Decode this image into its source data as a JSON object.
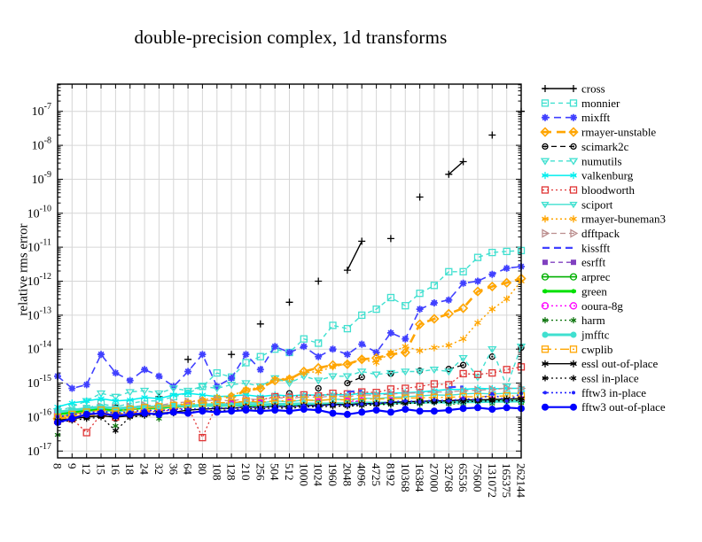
{
  "chart_data": {
    "type": "line",
    "title": "double-precision complex, 1d transforms",
    "ylabel": "relative rms error",
    "xlabel": "",
    "x_scale": "log-size-categorical",
    "y_scale": "log",
    "grid": true,
    "legend_position": "right-outside",
    "x_tick_rotation": 90,
    "categories": [
      "8",
      "9",
      "12",
      "15",
      "16",
      "18",
      "24",
      "32",
      "36",
      "64",
      "80",
      "108",
      "128",
      "210",
      "256",
      "504",
      "512",
      "1000",
      "1024",
      "1960",
      "2048",
      "4096",
      "4725",
      "8192",
      "10368",
      "16384",
      "27000",
      "32768",
      "65536",
      "75600",
      "131072",
      "165375",
      "262144"
    ],
    "y_tick_exponents": [
      -7,
      -8,
      -9,
      -10,
      -11,
      -12,
      -13,
      -14,
      -15,
      -16,
      -17
    ],
    "ylim_exponents": [
      -6.2,
      -17.2
    ],
    "series": [
      {
        "name": "cross",
        "color": "#000000",
        "dash": null,
        "width": 1.4,
        "marker": "plus",
        "marker_size": 4,
        "values": [
          1.5e-16,
          null,
          null,
          null,
          2.2e-16,
          null,
          null,
          4e-16,
          null,
          5e-15,
          null,
          null,
          7e-15,
          null,
          5.5e-14,
          null,
          2.4e-13,
          null,
          1e-12,
          null,
          2.1e-12,
          1.5e-11,
          null,
          1.8e-11,
          null,
          3e-10,
          null,
          1.4e-09,
          3.3e-09,
          null,
          2e-08,
          null,
          1e-07
        ]
      },
      {
        "name": "monnier",
        "color": "#40e0d0",
        "dash": "5,4",
        "width": 1.4,
        "marker": "square",
        "marker_size": 3.5,
        "values": [
          1.3e-16,
          1.5e-16,
          1.8e-16,
          2.5e-16,
          2e-16,
          2.5e-16,
          3e-16,
          3e-16,
          4e-16,
          5e-16,
          8e-16,
          2e-15,
          1.5e-15,
          4e-15,
          6e-15,
          1e-14,
          8e-15,
          2e-14,
          1.5e-14,
          5e-14,
          4e-14,
          1e-13,
          1.5e-13,
          3.3e-13,
          1.9e-13,
          4.4e-13,
          7.5e-13,
          1.9e-12,
          1.9e-12,
          5e-12,
          7e-12,
          7.5e-12,
          8e-12
        ]
      },
      {
        "name": "mixfft",
        "color": "#4040ff",
        "dash": "8,5",
        "width": 1.6,
        "marker": "star",
        "marker_size": 4,
        "values": [
          1.6e-15,
          7e-16,
          9e-16,
          7e-15,
          2e-15,
          1.2e-15,
          2.5e-15,
          1.6e-15,
          8e-16,
          2.2e-15,
          7e-15,
          8e-16,
          1.4e-15,
          7e-15,
          2.5e-15,
          1.2e-14,
          8e-15,
          1.2e-14,
          6e-15,
          1e-14,
          7e-15,
          1.4e-14,
          8e-15,
          3e-14,
          2e-14,
          1.5e-13,
          2.3e-13,
          2.8e-13,
          8.7e-13,
          1e-12,
          1.6e-12,
          2.4e-12,
          2.7e-12
        ]
      },
      {
        "name": "rmayer-unstable",
        "color": "#ffa500",
        "dash": "10,6",
        "width": 2.6,
        "marker": "diamond",
        "marker_size": 4.5,
        "values": [
          9e-17,
          1e-16,
          1.1e-16,
          1.3e-16,
          1.2e-16,
          1.3e-16,
          1.5e-16,
          1.6e-16,
          1.8e-16,
          2.5e-16,
          3e-16,
          3.5e-16,
          4e-16,
          6e-16,
          7e-16,
          1.2e-15,
          1.3e-15,
          2.2e-15,
          2.8e-15,
          3.4e-15,
          3.6e-15,
          5e-15,
          5.5e-15,
          7e-15,
          8e-15,
          5.4e-14,
          7.8e-14,
          1.1e-13,
          1.6e-13,
          5e-13,
          7e-13,
          9e-13,
          1.2e-12
        ]
      },
      {
        "name": "scimark2c",
        "color": "#000000",
        "dash": "6,4",
        "width": 1.3,
        "marker": "circledot",
        "marker_size": 3,
        "values": [
          7e-17,
          null,
          null,
          null,
          9e-17,
          null,
          null,
          1.2e-16,
          null,
          1.8e-16,
          null,
          null,
          2.6e-16,
          null,
          3.5e-16,
          null,
          5e-16,
          null,
          7e-16,
          null,
          1e-15,
          1.5e-15,
          null,
          1.9e-15,
          null,
          2.3e-15,
          null,
          2.6e-15,
          3.4e-15,
          null,
          6e-15,
          null,
          1.1e-14
        ]
      },
      {
        "name": "numutils",
        "color": "#40e0d0",
        "dash": "5,4",
        "width": 1.4,
        "marker": "tridown",
        "marker_size": 4,
        "values": [
          1.5e-16,
          2e-16,
          3e-16,
          5e-16,
          4e-16,
          5.5e-16,
          6e-16,
          5e-16,
          7e-16,
          6e-16,
          8e-16,
          7e-16,
          9e-16,
          1e-15,
          8e-16,
          1.4e-15,
          1e-15,
          1.6e-15,
          1.2e-15,
          1.6e-15,
          1.6e-15,
          2.2e-15,
          1.8e-15,
          2e-15,
          2.2e-15,
          2.2e-15,
          2.5e-15,
          2.2e-15,
          5.5e-15,
          1.5e-15,
          1e-14,
          8e-16,
          1.2e-14
        ]
      },
      {
        "name": "valkenburg",
        "color": "#00eeee",
        "dash": null,
        "width": 1.5,
        "marker": "asterisk",
        "marker_size": 4,
        "values": [
          2e-16,
          2.6e-16,
          3e-16,
          3.5e-16,
          3e-16,
          3.2e-16,
          3.8e-16,
          3.5e-16,
          4.5e-16,
          5e-16,
          4.5e-16,
          4e-16,
          4.2e-16,
          4.5e-16,
          4e-16,
          4.5e-16,
          4.2e-16,
          4.5e-16,
          4.4e-16,
          4.6e-16,
          4.5e-16,
          5e-16,
          4.8e-16,
          5e-16,
          5.2e-16,
          5.5e-16,
          6e-16,
          6.5e-16,
          6.5e-16,
          7e-16,
          6.8e-16,
          7e-16,
          7e-16
        ]
      },
      {
        "name": "bloodworth",
        "color": "#e03535",
        "dash": "2,3",
        "width": 1.3,
        "marker": "square",
        "marker_size": 3.5,
        "values": [
          8e-17,
          9e-17,
          3.5e-17,
          1.2e-16,
          1e-16,
          1.3e-16,
          1.4e-16,
          1.5e-16,
          1.6e-16,
          2e-16,
          2.5e-17,
          2.5e-16,
          2.6e-16,
          3e-16,
          3.2e-16,
          4e-16,
          3.8e-16,
          4.5e-16,
          4.2e-16,
          5e-16,
          4.8e-16,
          5.5e-16,
          5.3e-16,
          6.7e-16,
          7e-16,
          8e-16,
          9.5e-16,
          9e-16,
          1.9e-15,
          1.8e-15,
          2e-15,
          2.5e-15,
          3e-15
        ]
      },
      {
        "name": "sciport",
        "color": "#40e0d0",
        "dash": null,
        "width": 1.4,
        "marker": "tridown",
        "marker_size": 3.5,
        "values": [
          1e-16,
          1.2e-16,
          1.4e-16,
          1.6e-16,
          1.4e-16,
          1.6e-16,
          1.8e-16,
          1.7e-16,
          2e-16,
          2.2e-16,
          2.4e-16,
          2.5e-16,
          2.4e-16,
          2.8e-16,
          2.6e-16,
          3e-16,
          2.8e-16,
          3.2e-16,
          3e-16,
          3.4e-16,
          3.2e-16,
          3.6e-16,
          3.5e-16,
          3.8e-16,
          4e-16,
          4.2e-16,
          4.5e-16,
          4.4e-16,
          4.8e-16,
          5e-16,
          4.8e-16,
          5e-16,
          5e-16
        ]
      },
      {
        "name": "rmayer-buneman3",
        "color": "#ffa500",
        "dash": "2,3",
        "width": 1.5,
        "marker": "asterisk",
        "marker_size": 4,
        "values": [
          9e-17,
          1.1e-16,
          1.2e-16,
          1.4e-16,
          1.3e-16,
          1.5e-16,
          1.7e-16,
          1.8e-16,
          2e-16,
          2.8e-16,
          3.2e-16,
          3.8e-16,
          4.2e-16,
          6.5e-16,
          7.5e-16,
          1.3e-15,
          1.4e-15,
          2e-15,
          2.2e-15,
          3e-15,
          3.7e-15,
          5e-15,
          4e-15,
          8e-15,
          1.2e-14,
          9e-15,
          1.1e-14,
          1.3e-14,
          2e-14,
          6e-14,
          1.5e-13,
          3e-13,
          1e-12
        ]
      },
      {
        "name": "dfftpack",
        "color": "#bc8f8f",
        "dash": "6,4",
        "width": 1.3,
        "marker": "triright",
        "marker_size": 4,
        "values": [
          1.2e-16,
          1.4e-16,
          1.6e-16,
          2e-16,
          1.8e-16,
          2e-16,
          2.2e-16,
          2.2e-16,
          2.6e-16,
          2.8e-16,
          3e-16,
          3.2e-16,
          3e-16,
          3.5e-16,
          3.2e-16,
          3.8e-16,
          3.5e-16,
          4e-16,
          3.8e-16,
          4.2e-16,
          4e-16,
          4.5e-16,
          4.4e-16,
          4.8e-16,
          5e-16,
          5.2e-16,
          5.5e-16,
          5.5e-16,
          6e-16,
          6.2e-16,
          6.5e-16,
          7e-16,
          7e-16
        ]
      },
      {
        "name": "kissfft",
        "color": "#4040ff",
        "dash": "8,5",
        "width": 2.2,
        "marker": "none",
        "marker_size": 0,
        "values": [
          1.5e-16,
          null,
          null,
          null,
          1.8e-16,
          null,
          null,
          2.2e-16,
          null,
          2.8e-16,
          null,
          null,
          3.4e-16,
          null,
          4e-16,
          null,
          4.5e-16,
          null,
          5e-16,
          null,
          5.5e-16,
          6e-16,
          null,
          6.5e-16,
          null,
          7e-16,
          null,
          7.5e-16,
          8e-16,
          null,
          8.5e-16,
          null,
          9e-16
        ]
      },
      {
        "name": "esrfft",
        "color": "#8040c0",
        "dash": "5,4",
        "width": 1.4,
        "marker": "fsquare",
        "marker_size": 3,
        "values": [
          1.4e-16,
          null,
          null,
          null,
          1.6e-16,
          null,
          null,
          1.9e-16,
          null,
          2.2e-16,
          null,
          null,
          2.5e-16,
          null,
          2.7e-16,
          null,
          2.7e-16,
          null,
          2.8e-16,
          null,
          2.8e-16,
          2.9e-16,
          null,
          3e-16,
          null,
          3e-16,
          null,
          3e-16,
          3e-16,
          null,
          3e-16,
          null,
          3e-16
        ]
      },
      {
        "name": "arprec",
        "color": "#00b000",
        "dash": null,
        "width": 1.6,
        "marker": "circle",
        "marker_size": 3.5,
        "values": [
          1e-16,
          null,
          null,
          null,
          1.2e-16,
          null,
          null,
          1.4e-16,
          null,
          1.7e-16,
          null,
          null,
          2e-16,
          null,
          2.2e-16,
          null,
          2.3e-16,
          null,
          2.4e-16,
          null,
          2.5e-16,
          2.6e-16,
          null,
          2.7e-16,
          null,
          2.8e-16,
          null,
          2.8e-16,
          2.9e-16,
          null,
          3e-16,
          null,
          3e-16
        ]
      },
      {
        "name": "green",
        "color": "#00e000",
        "dash": null,
        "width": 3,
        "marker": "dot",
        "marker_size": 2.5,
        "values": [
          1.2e-16,
          1.4e-16,
          1.6e-16,
          1.8e-16,
          1.6e-16,
          1.8e-16,
          1.9e-16,
          1.9e-16,
          2.1e-16,
          2.1e-16,
          2.2e-16,
          2.2e-16,
          2.2e-16,
          2.3e-16,
          2.2e-16,
          2.4e-16,
          2.3e-16,
          2.4e-16,
          2.4e-16,
          2.5e-16,
          2.4e-16,
          2.6e-16,
          2.5e-16,
          2.6e-16,
          2.7e-16,
          2.7e-16,
          2.8e-16,
          2.8e-16,
          2.9e-16,
          3e-16,
          3e-16,
          3e-16,
          3e-16
        ]
      },
      {
        "name": "ooura-8g",
        "color": "#ff00ff",
        "dash": "2,3",
        "width": 1.4,
        "marker": "circle",
        "marker_size": 3.5,
        "values": [
          1.3e-16,
          null,
          null,
          null,
          1.5e-16,
          null,
          null,
          1.8e-16,
          null,
          2.1e-16,
          null,
          null,
          2.4e-16,
          null,
          2.6e-16,
          null,
          2.7e-16,
          null,
          2.8e-16,
          null,
          2.9e-16,
          3e-16,
          null,
          3e-16,
          null,
          3.1e-16,
          null,
          3.1e-16,
          3.2e-16,
          null,
          3.2e-16,
          null,
          3.3e-16
        ]
      },
      {
        "name": "harm",
        "color": "#117711",
        "dash": "2,3",
        "width": 1.4,
        "marker": "asterisk",
        "marker_size": 3.5,
        "values": [
          3e-17,
          null,
          null,
          null,
          5.5e-17,
          null,
          null,
          9e-17,
          null,
          1.3e-16,
          null,
          null,
          1.7e-16,
          null,
          1.9e-16,
          null,
          2e-16,
          null,
          2.1e-16,
          null,
          2.2e-16,
          2.2e-16,
          null,
          2.3e-16,
          null,
          2.4e-16,
          null,
          2.4e-16,
          2.5e-16,
          null,
          2.5e-16,
          null,
          2.6e-16
        ]
      },
      {
        "name": "jmfftc",
        "color": "#40e0d0",
        "dash": null,
        "width": 3,
        "marker": "dot",
        "marker_size": 3.5,
        "values": [
          1.4e-16,
          1.6e-16,
          1.8e-16,
          2e-16,
          1.8e-16,
          1.9e-16,
          2e-16,
          2e-16,
          2.2e-16,
          2.1e-16,
          2.2e-16,
          2.3e-16,
          2.2e-16,
          2.4e-16,
          2.3e-16,
          2.4e-16,
          2.4e-16,
          2.5e-16,
          2.4e-16,
          2.5e-16,
          2.5e-16,
          2.6e-16,
          2.6e-16,
          2.6e-16,
          2.7e-16,
          2.7e-16,
          2.8e-16,
          2.7e-16,
          2.8e-16,
          2.8e-16,
          2.9e-16,
          2.9e-16,
          3e-16
        ]
      },
      {
        "name": "cwplib",
        "color": "#ffa500",
        "dash": "10,4,2,4",
        "width": 1.4,
        "marker": "square",
        "marker_size": 3.5,
        "values": [
          1e-16,
          1.2e-16,
          1.4e-16,
          1.6e-16,
          1.5e-16,
          1.7e-16,
          1.9e-16,
          2e-16,
          2.2e-16,
          2.4e-16,
          2.6e-16,
          2.7e-16,
          2.6e-16,
          2.9e-16,
          2.8e-16,
          3e-16,
          3e-16,
          3.2e-16,
          3.1e-16,
          3.3e-16,
          3.2e-16,
          3.4e-16,
          3.4e-16,
          3.5e-16,
          3.6e-16,
          3.7e-16,
          3.8e-16,
          3.8e-16,
          4e-16,
          4e-16,
          4.1e-16,
          4.2e-16,
          4.2e-16
        ]
      },
      {
        "name": "essl out-of-place",
        "color": "#000000",
        "dash": null,
        "width": 1.4,
        "marker": "asterisk",
        "marker_size": 4,
        "values": [
          8e-17,
          9e-17,
          1e-16,
          1.1e-16,
          1e-16,
          1.1e-16,
          1.2e-16,
          1.3e-16,
          1.4e-16,
          1.6e-16,
          1.7e-16,
          1.8e-16,
          1.8e-16,
          2e-16,
          1.9e-16,
          2.1e-16,
          2e-16,
          2.2e-16,
          2.2e-16,
          2.4e-16,
          2.3e-16,
          2.5e-16,
          2.5e-16,
          2.7e-16,
          2.8e-16,
          2.9e-16,
          3e-16,
          3e-16,
          3.2e-16,
          3.2e-16,
          3.3e-16,
          3.4e-16,
          3.5e-16
        ]
      },
      {
        "name": "essl in-place",
        "color": "#000000",
        "dash": "2,3",
        "width": 1.3,
        "marker": "asterisk",
        "marker_size": 3.5,
        "values": [
          7e-17,
          8e-17,
          9e-17,
          1e-16,
          4e-17,
          1e-16,
          1.1e-16,
          1.2e-16,
          1.3e-16,
          1.4e-16,
          1.5e-16,
          1.6e-16,
          1.6e-16,
          1.8e-16,
          1.7e-16,
          1.9e-16,
          1.8e-16,
          2e-16,
          2e-16,
          2.1e-16,
          2.1e-16,
          2.2e-16,
          2.3e-16,
          2.4e-16,
          2.5e-16,
          2.6e-16,
          2.7e-16,
          2.7e-16,
          2.8e-16,
          2.9e-16,
          3e-16,
          3e-16,
          3.1e-16
        ]
      },
      {
        "name": "fftw3 in-place",
        "color": "#2222ff",
        "dash": "2,3",
        "width": 1.6,
        "marker": "dot",
        "marker_size": 2,
        "values": [
          1e-16,
          1.2e-16,
          1.3e-16,
          1.5e-16,
          1.3e-16,
          1.4e-16,
          1.6e-16,
          1.5e-16,
          1.7e-16,
          1.7e-16,
          1.8e-16,
          1.9e-16,
          1.8e-16,
          2e-16,
          1.9e-16,
          2.1e-16,
          2e-16,
          2.2e-16,
          2.1e-16,
          2.3e-16,
          2.2e-16,
          2.4e-16,
          2.5e-16,
          2.8e-16,
          3e-16,
          2.8e-16,
          3.2e-16,
          3e-16,
          3.5e-16,
          3.2e-16,
          4.8e-16,
          3e-16,
          5e-16
        ]
      },
      {
        "name": "fftw3 out-of-place",
        "color": "#0000ff",
        "dash": null,
        "width": 2.2,
        "marker": "dot",
        "marker_size": 4,
        "values": [
          7e-17,
          9e-17,
          1.2e-16,
          1.3e-16,
          1.1e-16,
          1.2e-16,
          1.3e-16,
          1.2e-16,
          1.4e-16,
          1.3e-16,
          1.5e-16,
          1.4e-16,
          1.5e-16,
          1.6e-16,
          1.5e-16,
          1.6e-16,
          1.5e-16,
          1.7e-16,
          1.6e-16,
          1.3e-16,
          1.2e-16,
          1.4e-16,
          1.6e-16,
          1.4e-16,
          1.7e-16,
          1.5e-16,
          1.5e-16,
          1.6e-16,
          1.8e-16,
          1.9e-16,
          1.7e-16,
          1.9e-16,
          1.8e-16
        ]
      }
    ]
  },
  "colors": {
    "background": "#ffffff",
    "grid": "#d6d6d6",
    "axis": "#000000",
    "text": "#000000"
  }
}
